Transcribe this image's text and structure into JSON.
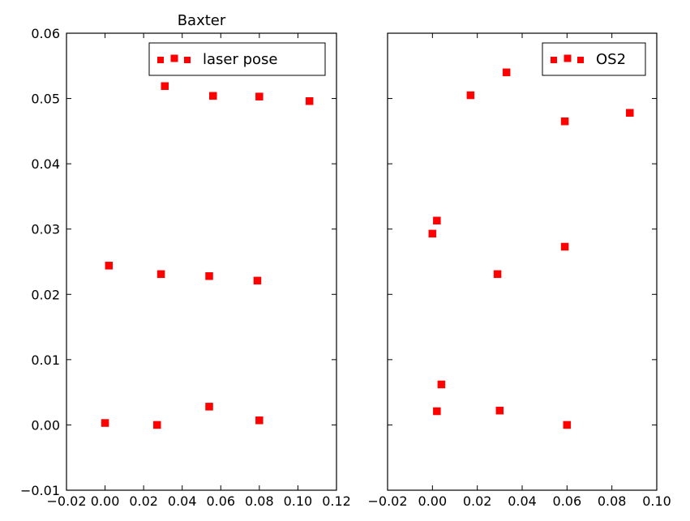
{
  "chart_data": [
    {
      "type": "scatter",
      "title": "Baxter",
      "xlabel": "",
      "ylabel": "",
      "xlim": [
        -0.02,
        0.12
      ],
      "ylim": [
        -0.01,
        0.06
      ],
      "x_ticks": [
        "−0.02",
        "0.00",
        "0.02",
        "0.04",
        "0.06",
        "0.08",
        "0.10",
        "0.12"
      ],
      "x_tick_values": [
        -0.02,
        0.0,
        0.02,
        0.04,
        0.06,
        0.08,
        0.1,
        0.12
      ],
      "y_ticks": [
        "−0.01",
        "0.00",
        "0.01",
        "0.02",
        "0.03",
        "0.04",
        "0.05",
        "0.06"
      ],
      "y_tick_values": [
        -0.01,
        0.0,
        0.01,
        0.02,
        0.03,
        0.04,
        0.05,
        0.06
      ],
      "legend_position": "top-right",
      "series": [
        {
          "name": "laser pose",
          "color": "#ff0000",
          "marker": "square",
          "points": [
            [
              0.031,
              0.0519
            ],
            [
              0.056,
              0.0504
            ],
            [
              0.08,
              0.0503
            ],
            [
              0.106,
              0.0496
            ],
            [
              0.002,
              0.0244
            ],
            [
              0.029,
              0.0231
            ],
            [
              0.054,
              0.0228
            ],
            [
              0.079,
              0.0221
            ],
            [
              0.0,
              0.0003
            ],
            [
              0.027,
              0.0
            ],
            [
              0.054,
              0.0028
            ],
            [
              0.08,
              0.0007
            ]
          ]
        }
      ]
    },
    {
      "type": "scatter",
      "title": "",
      "xlabel": "",
      "ylabel": "",
      "xlim": [
        -0.02,
        0.1
      ],
      "ylim": [
        -0.01,
        0.06
      ],
      "x_ticks": [
        "−0.02",
        "0.00",
        "0.02",
        "0.04",
        "0.06",
        "0.08",
        "0.10"
      ],
      "x_tick_values": [
        -0.02,
        0.0,
        0.02,
        0.04,
        0.06,
        0.08,
        0.1
      ],
      "y_tick_values": [
        -0.01,
        0.0,
        0.01,
        0.02,
        0.03,
        0.04,
        0.05,
        0.06
      ],
      "legend_position": "top-right",
      "series": [
        {
          "name": "OS2",
          "color": "#ff0000",
          "marker": "square",
          "points": [
            [
              0.033,
              0.054
            ],
            [
              0.017,
              0.0505
            ],
            [
              0.059,
              0.0465
            ],
            [
              0.088,
              0.0478
            ],
            [
              0.002,
              0.0313
            ],
            [
              0.0,
              0.0293
            ],
            [
              0.059,
              0.0273
            ],
            [
              0.029,
              0.0231
            ],
            [
              0.004,
              0.0062
            ],
            [
              0.002,
              0.0021
            ],
            [
              0.03,
              0.0022
            ],
            [
              0.06,
              0.0
            ]
          ]
        }
      ]
    }
  ]
}
